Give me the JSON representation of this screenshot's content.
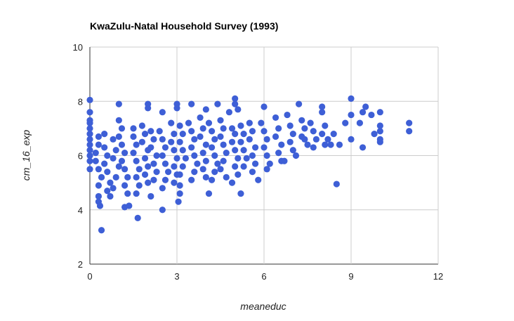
{
  "chart_data": {
    "type": "scatter",
    "title": "KwaZulu-Natal Household Survey (1993)",
    "xlabel": "meaneduc",
    "ylabel": "cm_16_exp",
    "xlim": [
      0,
      12
    ],
    "ylim": [
      2,
      10
    ],
    "xticks": [
      0,
      3,
      6,
      9,
      12
    ],
    "yticks": [
      2,
      4,
      6,
      8,
      10
    ],
    "x_tick_labels": [
      "0",
      "3",
      "6",
      "9",
      "12"
    ],
    "y_tick_labels": [
      "2",
      "4",
      "6",
      "8",
      "10"
    ],
    "grid": true,
    "legend": "none",
    "marker_color": "#3e5fd6",
    "series": [
      {
        "points": [
          [
            0.0,
            8.05
          ],
          [
            0.0,
            7.6
          ],
          [
            0.0,
            7.3
          ],
          [
            0.0,
            7.2
          ],
          [
            0.0,
            7.0
          ],
          [
            0.0,
            6.8
          ],
          [
            0.0,
            6.6
          ],
          [
            0.0,
            6.4
          ],
          [
            0.0,
            6.2
          ],
          [
            0.0,
            6.0
          ],
          [
            0.0,
            5.8
          ],
          [
            0.0,
            5.5
          ],
          [
            0.3,
            6.7
          ],
          [
            0.3,
            6.4
          ],
          [
            0.2,
            6.1
          ],
          [
            0.2,
            5.8
          ],
          [
            0.3,
            5.5
          ],
          [
            0.4,
            5.2
          ],
          [
            0.3,
            4.9
          ],
          [
            0.3,
            4.5
          ],
          [
            0.3,
            4.3
          ],
          [
            0.35,
            4.15
          ],
          [
            0.4,
            3.25
          ],
          [
            0.5,
            6.8
          ],
          [
            0.5,
            6.3
          ],
          [
            0.6,
            6.0
          ],
          [
            0.5,
            5.7
          ],
          [
            0.6,
            5.4
          ],
          [
            0.7,
            5.0
          ],
          [
            0.6,
            4.7
          ],
          [
            0.7,
            4.5
          ],
          [
            0.8,
            6.6
          ],
          [
            0.9,
            6.2
          ],
          [
            0.8,
            5.9
          ],
          [
            1.0,
            5.6
          ],
          [
            0.9,
            5.2
          ],
          [
            0.8,
            4.8
          ],
          [
            1.0,
            7.9
          ],
          [
            1.0,
            7.3
          ],
          [
            1.1,
            7.0
          ],
          [
            1.0,
            6.7
          ],
          [
            1.1,
            6.4
          ],
          [
            1.2,
            6.1
          ],
          [
            1.1,
            5.8
          ],
          [
            1.2,
            5.5
          ],
          [
            1.3,
            5.2
          ],
          [
            1.2,
            4.9
          ],
          [
            1.3,
            4.6
          ],
          [
            1.2,
            4.1
          ],
          [
            1.35,
            4.15
          ],
          [
            1.5,
            7.0
          ],
          [
            1.5,
            6.7
          ],
          [
            1.6,
            6.4
          ],
          [
            1.5,
            6.1
          ],
          [
            1.6,
            5.8
          ],
          [
            1.7,
            5.5
          ],
          [
            1.6,
            5.2
          ],
          [
            1.7,
            4.9
          ],
          [
            1.6,
            4.6
          ],
          [
            1.65,
            3.7
          ],
          [
            1.8,
            7.1
          ],
          [
            1.9,
            6.8
          ],
          [
            1.8,
            6.5
          ],
          [
            2.0,
            6.2
          ],
          [
            1.9,
            5.9
          ],
          [
            2.0,
            5.6
          ],
          [
            1.9,
            5.3
          ],
          [
            2.0,
            5.0
          ],
          [
            2.0,
            7.9
          ],
          [
            2.0,
            7.75
          ],
          [
            2.1,
            6.9
          ],
          [
            2.2,
            6.6
          ],
          [
            2.1,
            6.3
          ],
          [
            2.3,
            6.0
          ],
          [
            2.2,
            5.7
          ],
          [
            2.3,
            5.4
          ],
          [
            2.2,
            5.1
          ],
          [
            2.1,
            4.5
          ],
          [
            2.5,
            7.6
          ],
          [
            2.4,
            6.9
          ],
          [
            2.5,
            6.6
          ],
          [
            2.6,
            6.3
          ],
          [
            2.5,
            6.0
          ],
          [
            2.6,
            5.7
          ],
          [
            2.7,
            5.4
          ],
          [
            2.6,
            5.1
          ],
          [
            2.5,
            4.8
          ],
          [
            2.5,
            4.0
          ],
          [
            2.8,
            7.2
          ],
          [
            2.9,
            6.8
          ],
          [
            2.8,
            6.5
          ],
          [
            2.9,
            6.2
          ],
          [
            3.0,
            5.9
          ],
          [
            2.9,
            5.6
          ],
          [
            3.0,
            5.3
          ],
          [
            2.9,
            5.0
          ],
          [
            3.0,
            7.9
          ],
          [
            3.0,
            7.75
          ],
          [
            3.1,
            7.1
          ],
          [
            3.2,
            6.8
          ],
          [
            3.1,
            6.5
          ],
          [
            3.2,
            6.2
          ],
          [
            3.3,
            5.9
          ],
          [
            3.2,
            5.6
          ],
          [
            3.1,
            5.3
          ],
          [
            3.1,
            4.9
          ],
          [
            3.1,
            4.6
          ],
          [
            3.05,
            4.3
          ],
          [
            3.5,
            7.9
          ],
          [
            3.4,
            7.2
          ],
          [
            3.5,
            6.9
          ],
          [
            3.6,
            6.6
          ],
          [
            3.5,
            6.3
          ],
          [
            3.6,
            6.0
          ],
          [
            3.7,
            5.7
          ],
          [
            3.6,
            5.4
          ],
          [
            3.5,
            5.1
          ],
          [
            3.8,
            7.4
          ],
          [
            3.9,
            7.0
          ],
          [
            3.8,
            6.7
          ],
          [
            4.0,
            6.4
          ],
          [
            3.9,
            6.1
          ],
          [
            4.0,
            5.8
          ],
          [
            3.9,
            5.5
          ],
          [
            4.0,
            5.2
          ],
          [
            4.1,
            4.6
          ],
          [
            4.0,
            7.7
          ],
          [
            4.1,
            7.2
          ],
          [
            4.2,
            6.9
          ],
          [
            4.3,
            6.6
          ],
          [
            4.2,
            6.3
          ],
          [
            4.3,
            6.0
          ],
          [
            4.4,
            5.7
          ],
          [
            4.3,
            5.4
          ],
          [
            4.2,
            5.1
          ],
          [
            4.4,
            7.9
          ],
          [
            4.5,
            7.3
          ],
          [
            4.6,
            7.0
          ],
          [
            4.5,
            6.7
          ],
          [
            4.6,
            6.4
          ],
          [
            4.7,
            6.1
          ],
          [
            4.6,
            5.8
          ],
          [
            4.5,
            5.5
          ],
          [
            4.7,
            5.2
          ],
          [
            4.8,
            7.6
          ],
          [
            4.9,
            7.0
          ],
          [
            5.0,
            6.8
          ],
          [
            4.9,
            6.5
          ],
          [
            5.0,
            6.2
          ],
          [
            5.1,
            5.9
          ],
          [
            5.0,
            5.6
          ],
          [
            5.1,
            5.3
          ],
          [
            4.9,
            5.0
          ],
          [
            5.0,
            8.1
          ],
          [
            5.0,
            7.9
          ],
          [
            5.1,
            7.7
          ],
          [
            5.2,
            7.1
          ],
          [
            5.3,
            6.8
          ],
          [
            5.2,
            6.5
          ],
          [
            5.3,
            6.2
          ],
          [
            5.4,
            5.9
          ],
          [
            5.3,
            5.6
          ],
          [
            5.2,
            4.6
          ],
          [
            5.5,
            7.2
          ],
          [
            5.6,
            6.9
          ],
          [
            5.5,
            6.6
          ],
          [
            5.7,
            6.3
          ],
          [
            5.6,
            6.0
          ],
          [
            5.7,
            5.7
          ],
          [
            5.6,
            5.4
          ],
          [
            5.8,
            5.1
          ],
          [
            6.0,
            7.8
          ],
          [
            5.9,
            7.2
          ],
          [
            6.0,
            6.9
          ],
          [
            6.1,
            6.6
          ],
          [
            6.0,
            6.3
          ],
          [
            6.1,
            6.0
          ],
          [
            6.2,
            5.7
          ],
          [
            6.1,
            5.5
          ],
          [
            6.4,
            7.4
          ],
          [
            6.5,
            7.0
          ],
          [
            6.4,
            6.7
          ],
          [
            6.6,
            6.4
          ],
          [
            6.5,
            6.1
          ],
          [
            6.6,
            5.8
          ],
          [
            6.7,
            5.8
          ],
          [
            6.8,
            7.5
          ],
          [
            6.9,
            7.1
          ],
          [
            7.0,
            6.8
          ],
          [
            6.9,
            6.5
          ],
          [
            7.0,
            6.2
          ],
          [
            7.1,
            6.0
          ],
          [
            7.2,
            7.9
          ],
          [
            7.3,
            7.3
          ],
          [
            7.4,
            7.0
          ],
          [
            7.3,
            6.7
          ],
          [
            7.5,
            6.4
          ],
          [
            7.4,
            6.6
          ],
          [
            7.6,
            7.2
          ],
          [
            7.7,
            6.9
          ],
          [
            7.8,
            6.6
          ],
          [
            7.7,
            6.3
          ],
          [
            8.0,
            7.8
          ],
          [
            8.0,
            7.6
          ],
          [
            8.1,
            7.1
          ],
          [
            8.0,
            6.8
          ],
          [
            8.1,
            6.4
          ],
          [
            8.2,
            6.6
          ],
          [
            8.4,
            6.8
          ],
          [
            8.3,
            6.4
          ],
          [
            8.6,
            6.4
          ],
          [
            8.5,
            4.95
          ],
          [
            8.8,
            7.2
          ],
          [
            9.0,
            8.1
          ],
          [
            9.0,
            7.5
          ],
          [
            9.0,
            6.6
          ],
          [
            9.3,
            7.2
          ],
          [
            9.4,
            7.6
          ],
          [
            9.5,
            7.8
          ],
          [
            9.4,
            6.3
          ],
          [
            9.7,
            7.5
          ],
          [
            9.8,
            6.8
          ],
          [
            10.0,
            7.6
          ],
          [
            10.0,
            7.1
          ],
          [
            10.0,
            6.9
          ],
          [
            10.0,
            6.6
          ],
          [
            10.0,
            6.5
          ],
          [
            11.0,
            7.2
          ],
          [
            11.0,
            6.9
          ]
        ]
      }
    ]
  }
}
